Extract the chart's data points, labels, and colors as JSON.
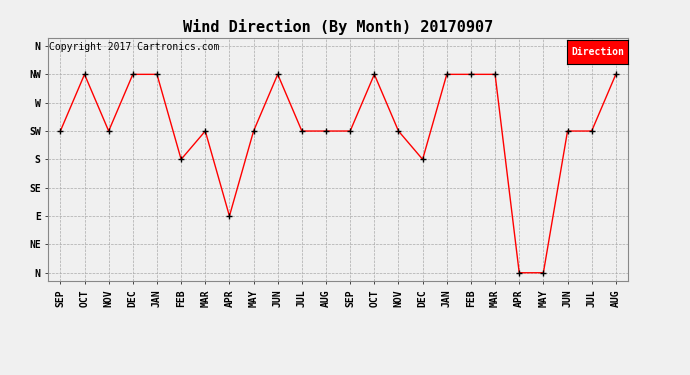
{
  "title": "Wind Direction (By Month) 20170907",
  "copyright": "Copyright 2017 Cartronics.com",
  "legend_label": "Direction",
  "legend_bg": "#ff0000",
  "legend_text_color": "#ffffff",
  "x_labels": [
    "SEP",
    "OCT",
    "NOV",
    "DEC",
    "JAN",
    "FEB",
    "MAR",
    "APR",
    "MAY",
    "JUN",
    "JUL",
    "AUG",
    "SEP",
    "OCT",
    "NOV",
    "DEC",
    "JAN",
    "FEB",
    "MAR",
    "APR",
    "MAY",
    "JUN",
    "JUL",
    "AUG"
  ],
  "y_tick_positions": [
    8,
    7,
    6,
    5,
    4,
    3,
    2,
    1,
    0
  ],
  "y_tick_labels": [
    "N",
    "NW",
    "W",
    "SW",
    "S",
    "SE",
    "E",
    "NE",
    "N"
  ],
  "data_values": [
    5,
    7,
    5,
    7,
    7,
    4,
    5,
    2,
    5,
    7,
    5,
    5,
    5,
    7,
    5,
    4,
    7,
    7,
    7,
    0,
    0,
    5,
    5,
    7
  ],
  "line_color": "#ff0000",
  "marker_color": "#000000",
  "bg_color": "#f0f0f0",
  "grid_color": "#aaaaaa",
  "title_fontsize": 11,
  "tick_fontsize": 7,
  "copyright_fontsize": 7
}
